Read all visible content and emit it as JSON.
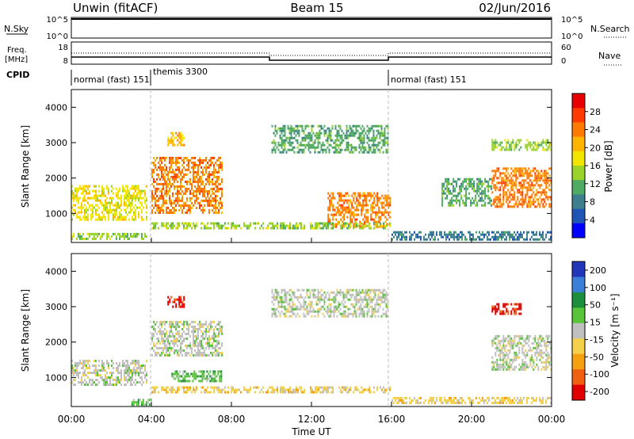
{
  "header": {
    "left_title": "Unwin (fitACF)",
    "center_title": "Beam 15",
    "right_title": "02/Jun/2016"
  },
  "top_panels": {
    "nsky": {
      "label": "N.Sky",
      "right_label": "N.Search",
      "left_ticks": [
        "10^5",
        "10^0"
      ],
      "right_ticks": [
        "10^5",
        "10^0"
      ]
    },
    "freq": {
      "label_line1": "Freq.",
      "label_line2": "[MHz]",
      "right_label": "Nave",
      "left_ticks": [
        "18",
        "8"
      ],
      "right_ticks": [
        "60",
        "0"
      ]
    },
    "cpid": {
      "label": "CPID",
      "modes": [
        "normal (fast) 151",
        "themis 3300",
        "normal (fast) 151"
      ]
    }
  },
  "x_axis": {
    "ticks": [
      "00:00",
      "04:00",
      "08:00",
      "12:00",
      "16:00",
      "20:00",
      "00:00"
    ],
    "label": "Time UT"
  },
  "power_panel": {
    "ylabel": "Slant Range [km]",
    "yticks": [
      "1000",
      "2000",
      "3000",
      "4000"
    ],
    "colorbar_label": "Power [dB]",
    "colorbar_ticks": [
      "4",
      "8",
      "12",
      "16",
      "20",
      "24",
      "28"
    ],
    "colors": [
      "#0000ff",
      "#1f55b5",
      "#3d7f8c",
      "#4faa63",
      "#9ad42a",
      "#f2e600",
      "#ffb400",
      "#ff7a00",
      "#ff3a00",
      "#e80000"
    ]
  },
  "velocity_panel": {
    "ylabel": "Slant Range [km]",
    "yticks": [
      "1000",
      "2000",
      "3000",
      "4000"
    ],
    "colorbar_label": "Velocity [m s⁻¹]",
    "colorbar_ticks": [
      "200",
      "100",
      "50",
      "15",
      "-15",
      "-50",
      "-100",
      "-200"
    ],
    "colors": [
      "#2038b8",
      "#3a7fd8",
      "#1c8f3c",
      "#58c43a",
      "#c0c0c0",
      "#f5d04a",
      "#f5a010",
      "#f06010",
      "#e00000"
    ]
  },
  "chart_data": [
    {
      "type": "heatmap",
      "title": "Power",
      "xlabel": "Time UT",
      "ylabel": "Slant Range [km]",
      "xlim": [
        "00:00",
        "24:00"
      ],
      "ylim": [
        180,
        4500
      ],
      "zlabel": "Power [dB]",
      "zlim": [
        0,
        30
      ],
      "echo_regions": [
        {
          "t_start": 0.0,
          "t_end": 3.8,
          "range_min": 800,
          "range_max": 1800,
          "power_db": 18
        },
        {
          "t_start": 0.0,
          "t_end": 3.8,
          "range_min": 250,
          "range_max": 450,
          "power_db": 14
        },
        {
          "t_start": 4.0,
          "t_end": 7.5,
          "range_min": 1000,
          "range_max": 2600,
          "power_db": 22
        },
        {
          "t_start": 4.8,
          "t_end": 5.6,
          "range_min": 2900,
          "range_max": 3300,
          "power_db": 20
        },
        {
          "t_start": 10.0,
          "t_end": 15.8,
          "range_min": 2700,
          "range_max": 3500,
          "power_db": 10
        },
        {
          "t_start": 12.8,
          "t_end": 15.9,
          "range_min": 600,
          "range_max": 1600,
          "power_db": 22
        },
        {
          "t_start": 4.0,
          "t_end": 15.9,
          "range_min": 600,
          "range_max": 750,
          "power_db": 14
        },
        {
          "t_start": 16.0,
          "t_end": 24.0,
          "range_min": 250,
          "range_max": 500,
          "power_db": 8
        },
        {
          "t_start": 18.5,
          "t_end": 21.0,
          "range_min": 1200,
          "range_max": 2000,
          "power_db": 10
        },
        {
          "t_start": 21.0,
          "t_end": 24.0,
          "range_min": 1200,
          "range_max": 2300,
          "power_db": 24
        },
        {
          "t_start": 21.0,
          "t_end": 24.0,
          "range_min": 2800,
          "range_max": 3100,
          "power_db": 14
        }
      ]
    },
    {
      "type": "heatmap",
      "title": "Velocity",
      "xlabel": "Time UT",
      "ylabel": "Slant Range [km]",
      "xlim": [
        "00:00",
        "24:00"
      ],
      "ylim": [
        180,
        4500
      ],
      "zlabel": "Velocity [m s⁻¹]",
      "zlim": [
        -200,
        200
      ],
      "echo_regions": [
        {
          "t_start": 0.0,
          "t_end": 3.8,
          "range_min": 800,
          "range_max": 1500,
          "velocity": 0
        },
        {
          "t_start": 3.0,
          "t_end": 4.0,
          "range_min": 250,
          "range_max": 400,
          "velocity": 50
        },
        {
          "t_start": 4.0,
          "t_end": 7.5,
          "range_min": 1600,
          "range_max": 2600,
          "velocity": 0
        },
        {
          "t_start": 5.0,
          "t_end": 7.5,
          "range_min": 900,
          "range_max": 1200,
          "velocity": 50
        },
        {
          "t_start": 4.8,
          "t_end": 5.6,
          "range_min": 3000,
          "range_max": 3300,
          "velocity": -200
        },
        {
          "t_start": 10.0,
          "t_end": 15.8,
          "range_min": 2700,
          "range_max": 3500,
          "velocity": 0
        },
        {
          "t_start": 4.0,
          "t_end": 15.9,
          "range_min": 550,
          "range_max": 750,
          "velocity": -50
        },
        {
          "t_start": 16.0,
          "t_end": 24.0,
          "range_min": 250,
          "range_max": 450,
          "velocity": -50
        },
        {
          "t_start": 21.0,
          "t_end": 24.0,
          "range_min": 1200,
          "range_max": 2200,
          "velocity": 0
        },
        {
          "t_start": 21.0,
          "t_end": 22.5,
          "range_min": 2800,
          "range_max": 3100,
          "velocity": -200
        }
      ]
    }
  ]
}
